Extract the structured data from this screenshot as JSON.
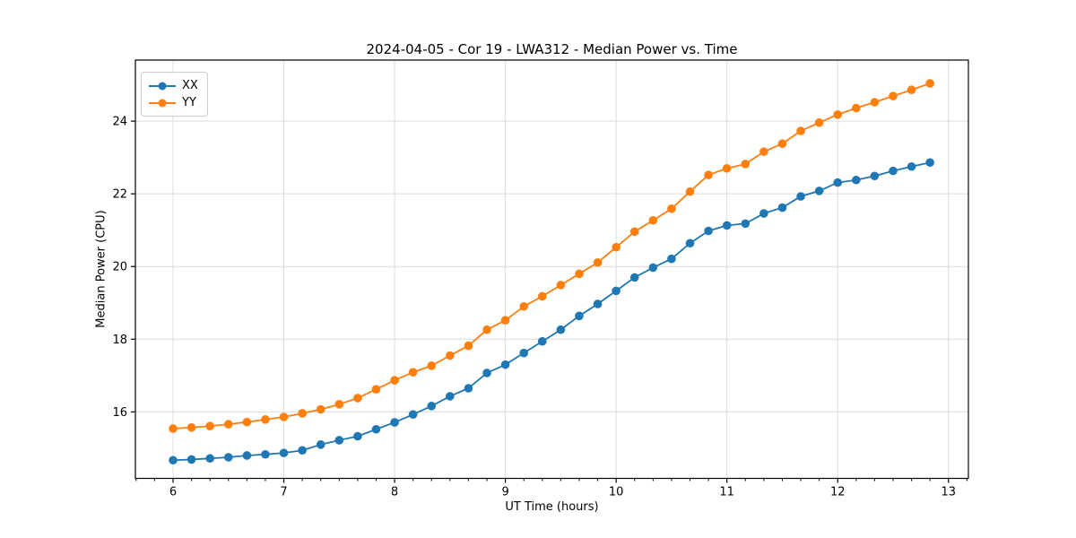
{
  "chart_data": {
    "type": "line",
    "title": "2024-04-05 - Cor 19 - LWA312 - Median Power vs. Time",
    "xlabel": "UT Time (hours)",
    "ylabel": "Median Power (CPU)",
    "xlim": [
      5.66,
      13.18
    ],
    "ylim": [
      14.17,
      25.68
    ],
    "x_major_ticks": [
      6,
      7,
      8,
      9,
      10,
      11,
      12,
      13
    ],
    "x_minor_step": 0.166667,
    "y_major_ticks": [
      16,
      18,
      20,
      22,
      24
    ],
    "grid": true,
    "grid_color": "#dcdcdc",
    "spine_color": "#000000",
    "legend_position": "upper-left",
    "x": [
      6,
      6.1667,
      6.3333,
      6.5,
      6.6667,
      6.8333,
      7,
      7.1667,
      7.3333,
      7.5,
      7.6667,
      7.8333,
      8,
      8.1667,
      8.3333,
      8.5,
      8.6667,
      8.8333,
      9,
      9.1667,
      9.3333,
      9.5,
      9.6667,
      9.8333,
      10,
      10.1667,
      10.3333,
      10.5,
      10.6667,
      10.8333,
      11,
      11.1667,
      11.3333,
      11.5,
      11.6667,
      11.8333,
      12,
      12.1667,
      12.3333,
      12.5,
      12.6667,
      12.8333
    ],
    "series": [
      {
        "name": "XX",
        "color": "#1f77b4",
        "values": [
          14.67,
          14.69,
          14.72,
          14.75,
          14.8,
          14.83,
          14.87,
          14.94,
          15.1,
          15.22,
          15.33,
          15.52,
          15.71,
          15.93,
          16.16,
          16.43,
          16.65,
          17.07,
          17.3,
          17.62,
          17.94,
          18.26,
          18.64,
          18.97,
          19.33,
          19.7,
          19.97,
          20.21,
          20.64,
          20.98,
          21.13,
          21.18,
          21.46,
          21.62,
          21.93,
          22.08,
          22.31,
          22.38,
          22.49,
          22.63,
          22.75,
          22.86
        ]
      },
      {
        "name": "YY",
        "color": "#ff7f0e",
        "values": [
          15.54,
          15.57,
          15.61,
          15.66,
          15.72,
          15.79,
          15.86,
          15.96,
          16.07,
          16.21,
          16.38,
          16.62,
          16.87,
          17.09,
          17.27,
          17.55,
          17.82,
          18.26,
          18.52,
          18.9,
          19.18,
          19.49,
          19.8,
          20.11,
          20.53,
          20.96,
          21.27,
          21.59,
          22.06,
          22.52,
          22.7,
          22.82,
          23.16,
          23.38,
          23.73,
          23.96,
          24.18,
          24.36,
          24.52,
          24.69,
          24.86,
          25.04
        ]
      }
    ]
  }
}
